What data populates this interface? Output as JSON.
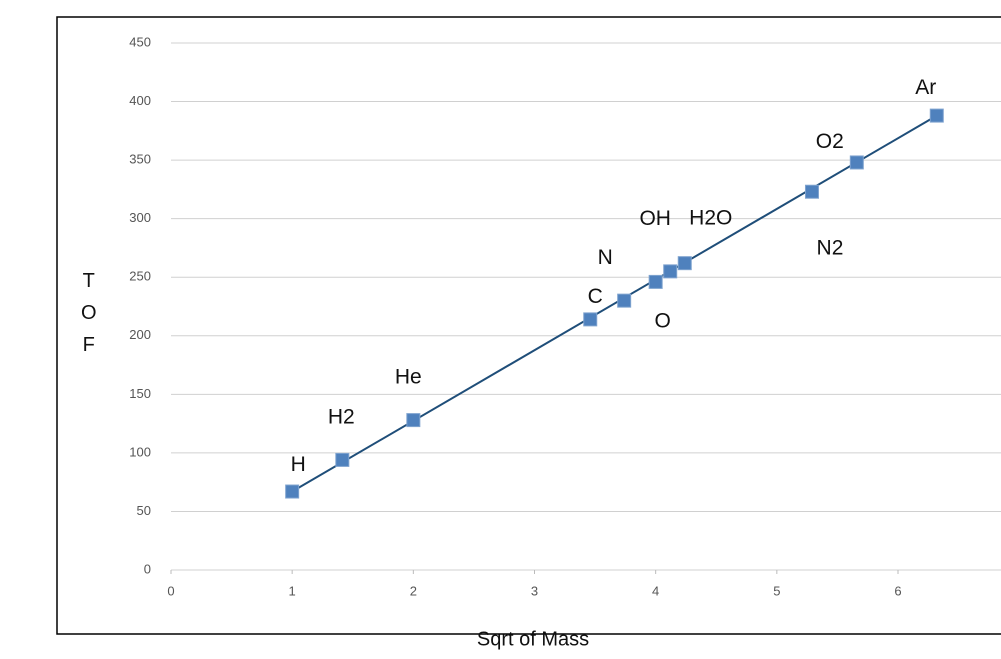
{
  "chart_data": {
    "type": "scatter",
    "x_label": "Sqrt of Mass",
    "y_label": "TOF",
    "x": [
      1,
      1.414,
      2,
      3.46,
      3.74,
      4,
      4.12,
      4.24,
      5.29,
      5.66,
      6.32
    ],
    "values": [
      67,
      94,
      128,
      214,
      230,
      246,
      255,
      262,
      323,
      348,
      388
    ],
    "point_labels": [
      "H",
      "H2",
      "He",
      "C",
      "N",
      "O",
      "OH",
      "H2O",
      "N2",
      "O2",
      "Ar"
    ],
    "color": "#4f81bd",
    "trendline": {
      "x": [
        1,
        6.32
      ],
      "values": [
        67,
        388
      ],
      "color": "#1f4e79"
    },
    "xlim": [
      0,
      6.85
    ],
    "xticks": [
      0,
      1,
      2,
      3,
      4,
      5,
      6
    ],
    "ylim": [
      0,
      450
    ],
    "yticks": [
      0,
      50,
      100,
      150,
      200,
      250,
      300,
      350,
      400,
      450
    ],
    "grid": true
  }
}
